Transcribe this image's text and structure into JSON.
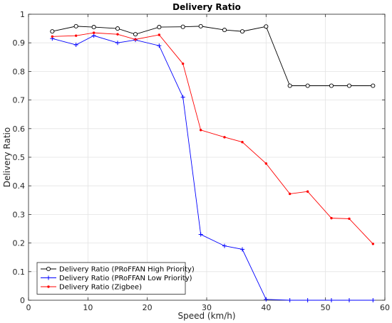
{
  "chart_data": {
    "type": "line",
    "title": "Delivery Ratio",
    "xlabel": "Speed (km/h)",
    "ylabel": "Delivery Ratio",
    "xlim": [
      0,
      60
    ],
    "ylim": [
      0,
      1
    ],
    "xticks": [
      "0",
      "10",
      "20",
      "30",
      "40",
      "50",
      "60"
    ],
    "yticks": [
      "0",
      "0.1",
      "0.2",
      "0.3",
      "0.4",
      "0.5",
      "0.6",
      "0.7",
      "0.8",
      "0.9",
      "1"
    ],
    "grid": true,
    "legend_position": "bottom-left",
    "series": [
      {
        "name": "Delivery Ratio (PRoFFAN High Priority)",
        "color": "#000000",
        "marker": "circle",
        "x": [
          4,
          8,
          11,
          15,
          18,
          22,
          26,
          29,
          33,
          36,
          40,
          44,
          47,
          51,
          54,
          58
        ],
        "y": [
          0.94,
          0.958,
          0.955,
          0.95,
          0.93,
          0.955,
          0.956,
          0.958,
          0.945,
          0.94,
          0.957,
          0.75,
          0.75,
          0.75,
          0.75,
          0.75
        ]
      },
      {
        "name": "Delivery Ratio (PRoFFAN Low Priority)",
        "color": "#0000ff",
        "marker": "plus",
        "x": [
          4,
          8,
          11,
          15,
          18,
          22,
          26,
          29,
          33,
          36,
          40,
          44,
          47,
          51,
          54,
          58
        ],
        "y": [
          0.915,
          0.893,
          0.925,
          0.9,
          0.91,
          0.89,
          0.71,
          0.23,
          0.19,
          0.178,
          0.003,
          0.0,
          0.0,
          0.0,
          0.0,
          0.0
        ]
      },
      {
        "name": "Delivery Ratio (Zigbee)",
        "color": "#ff0000",
        "marker": "dot",
        "x": [
          4,
          8,
          11,
          15,
          18,
          22,
          26,
          29,
          33,
          36,
          40,
          44,
          47,
          51,
          54,
          58
        ],
        "y": [
          0.922,
          0.925,
          0.935,
          0.93,
          0.912,
          0.928,
          0.827,
          0.595,
          0.57,
          0.553,
          0.478,
          0.372,
          0.38,
          0.287,
          0.285,
          0.197
        ]
      }
    ]
  }
}
